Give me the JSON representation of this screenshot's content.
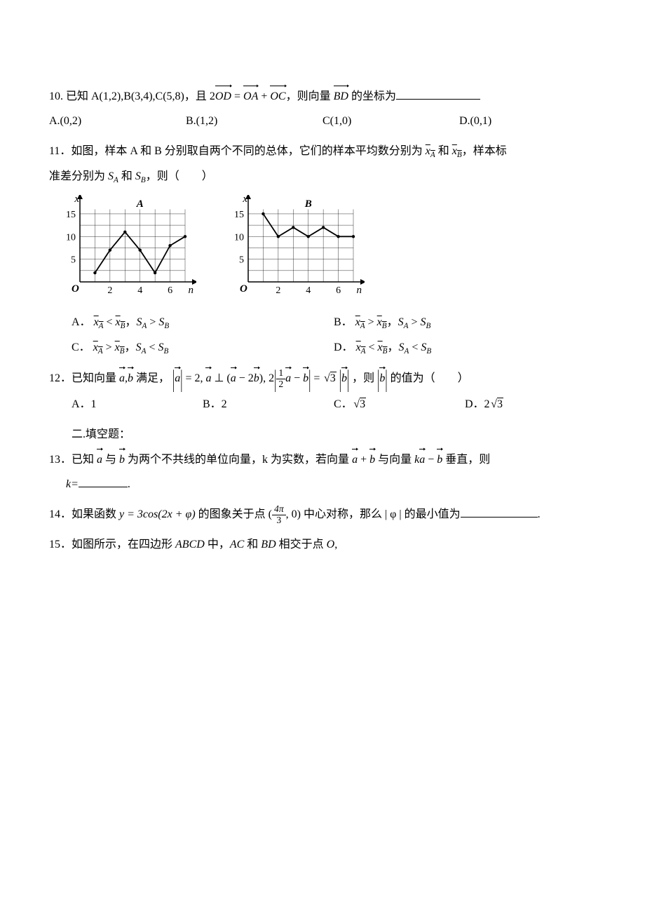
{
  "q10": {
    "num": "10.",
    "stem_a": "已知 A(1,2),B(3,4),C(5,8)，且 2",
    "vec1": "OD",
    "eq": " = ",
    "vec2": "OA",
    "plus": " + ",
    "vec3": "OC",
    "mid": "，则向量 ",
    "vec4": "BD",
    "tail": " 的坐标为",
    "blank_width": 120,
    "options": {
      "A": "A.(0,2)",
      "B": "B.(1,2)",
      "C": "C(1,0)",
      "D": "D.(0,1)"
    }
  },
  "q11": {
    "num": "11．",
    "stem_a": "如图，样本 A 和 B 分别取自两个不同的总体，它们的样本平均数分别为 ",
    "xA": "x",
    "xA_sub": "A",
    "and1": " 和 ",
    "xB": "x",
    "xB_sub": "B",
    "stem_b": "，样本标",
    "stem_c": "准差分别为 ",
    "sA": "S",
    "sA_sub": "A",
    "and2": " 和 ",
    "sB": "S",
    "sB_sub": "B",
    "stem_d": "，则（　　）",
    "chartA": {
      "label": "A",
      "x_ticks": [
        "2",
        "4",
        "6"
      ],
      "y_ticks": [
        "5",
        "10",
        "15"
      ],
      "xlim": [
        0,
        7
      ],
      "ylim": [
        0,
        17
      ],
      "points": [
        [
          1,
          2
        ],
        [
          2,
          7
        ],
        [
          3,
          11
        ],
        [
          4,
          7
        ],
        [
          5,
          2
        ],
        [
          6,
          8
        ],
        [
          7,
          10
        ]
      ],
      "grid_color": "#000",
      "line_color": "#000",
      "x_axis_label": "n",
      "y_axis_label": "x"
    },
    "chartB": {
      "label": "B",
      "x_ticks": [
        "2",
        "4",
        "6"
      ],
      "y_ticks": [
        "5",
        "10",
        "15"
      ],
      "xlim": [
        0,
        7
      ],
      "ylim": [
        0,
        17
      ],
      "points": [
        [
          1,
          15
        ],
        [
          2,
          10
        ],
        [
          3,
          12
        ],
        [
          4,
          10
        ],
        [
          5,
          12
        ],
        [
          6,
          10
        ],
        [
          7,
          10
        ]
      ],
      "grid_color": "#000",
      "line_color": "#000",
      "x_axis_label": "n",
      "y_axis_label": "x"
    },
    "options": {
      "A": {
        "label": "A．",
        "rel1": " < ",
        "rel2": " > "
      },
      "B": {
        "label": "B．",
        "rel1": " > ",
        "rel2": " > "
      },
      "C": {
        "label": "C．",
        "rel1": " > ",
        "rel2": " < "
      },
      "D": {
        "label": "D．",
        "rel1": " < ",
        "rel2": " < "
      }
    }
  },
  "q12": {
    "num": "12．",
    "stem_a": "已知向量 ",
    "a": "a",
    "b": "b",
    "stem_b": " 满足，",
    "eq1_abs_a": "a",
    "eq1_rhs": " = 2, ",
    "perp_a": "a",
    "perp_txt": " ⊥ (",
    "perp_a2": "a",
    "minus": " − 2",
    "perp_b": "b",
    "paren": "),  2",
    "frac_num": "1",
    "frac_den": "2",
    "mid_a": "a",
    "mid_minus": " − ",
    "mid_b": "b",
    "eq_sqrt": " = ",
    "sqrt_val": "3",
    "rhs_b": "b",
    "then": " ，则 ",
    "then_b": "b",
    "then_txt": " 的值为（　　）",
    "options": {
      "A": "A．1",
      "B": "B．2",
      "C_pre": "C．",
      "C_val": "3",
      "D_pre": "D．2",
      "D_val": "3"
    }
  },
  "section2": "二.填空题：",
  "q13": {
    "num": "13．",
    "a": "已知 ",
    "vec_a": "a",
    "mid1": " 与 ",
    "vec_b": "b",
    "b": " 为两个不共线的单位向量，k 为实数，若向量 ",
    "vec_a2": "a",
    "plus": " + ",
    "vec_b2": "b",
    "c": " 与向量 ",
    "k": "k",
    "vec_a3": "a",
    "minus": " − ",
    "vec_b3": "b",
    "d": " 垂直，则",
    "k_label": "k=",
    "blank_width": 70,
    "dot": "."
  },
  "q14": {
    "num": "14．",
    "a": "如果函数 ",
    "y_eq": "y = 3cos(2x + φ)",
    "b": " 的图象关于点 (",
    "frac_num": "4π",
    "frac_den": "3",
    "c": ", 0) 中心对称，那么 | φ | 的最小值为",
    "blank_width": 110,
    "dot": "."
  },
  "q15": {
    "num": "15．",
    "a": "如图所示，在四边形 ",
    "it1": "ABCD",
    "b": " 中，",
    "it2": "AC",
    "c": " 和 ",
    "it3": "BD",
    "d": " 相交于点 ",
    "it4": "O",
    "e": ","
  }
}
